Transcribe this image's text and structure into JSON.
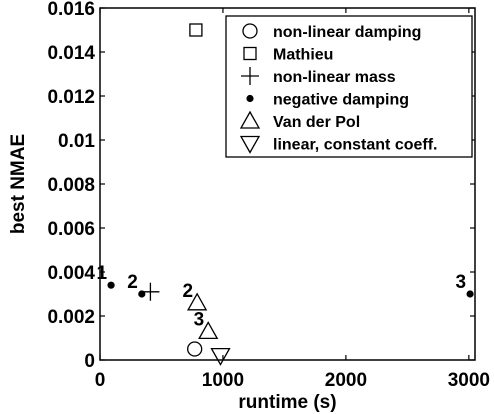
{
  "chart_data": {
    "type": "scatter",
    "xlabel": "runtime (s)",
    "ylabel": "best NMAE",
    "xlim": [
      0,
      3050
    ],
    "ylim": [
      0,
      0.016
    ],
    "xticks": [
      0,
      1000,
      2000,
      3000
    ],
    "xtick_labels": [
      "0",
      "1000",
      "2000",
      "3000"
    ],
    "yticks": [
      0,
      0.002,
      0.004,
      0.006,
      0.008,
      0.01,
      0.012,
      0.014,
      0.016
    ],
    "ytick_labels": [
      "0",
      "0.002",
      "0.004",
      "0.006",
      "0.008",
      "0.01",
      "0.012",
      "0.014",
      "0.016"
    ],
    "grid": false,
    "legend_position": "top-right",
    "series": [
      {
        "name": "non-linear damping",
        "marker": "circle",
        "points": [
          {
            "x": 770,
            "y": 0.0005,
            "label": ""
          }
        ]
      },
      {
        "name": "Mathieu",
        "marker": "square",
        "points": [
          {
            "x": 780,
            "y": 0.015,
            "label": ""
          }
        ]
      },
      {
        "name": "non-linear mass",
        "marker": "plus",
        "points": [
          {
            "x": 410,
            "y": 0.0031,
            "label": ""
          }
        ]
      },
      {
        "name": "negative damping",
        "marker": "dot",
        "points": [
          {
            "x": 90,
            "y": 0.0034,
            "label": "1"
          },
          {
            "x": 340,
            "y": 0.003,
            "label": "2"
          },
          {
            "x": 3010,
            "y": 0.003,
            "label": "3"
          }
        ]
      },
      {
        "name": "Van der Pol",
        "marker": "triangle-up",
        "points": [
          {
            "x": 790,
            "y": 0.0026,
            "label": "2"
          },
          {
            "x": 880,
            "y": 0.0013,
            "label": "3"
          }
        ]
      },
      {
        "name": "linear, constant coeff.",
        "marker": "triangle-down",
        "points": [
          {
            "x": 980,
            "y": 0.0002,
            "label": ""
          }
        ]
      }
    ]
  }
}
